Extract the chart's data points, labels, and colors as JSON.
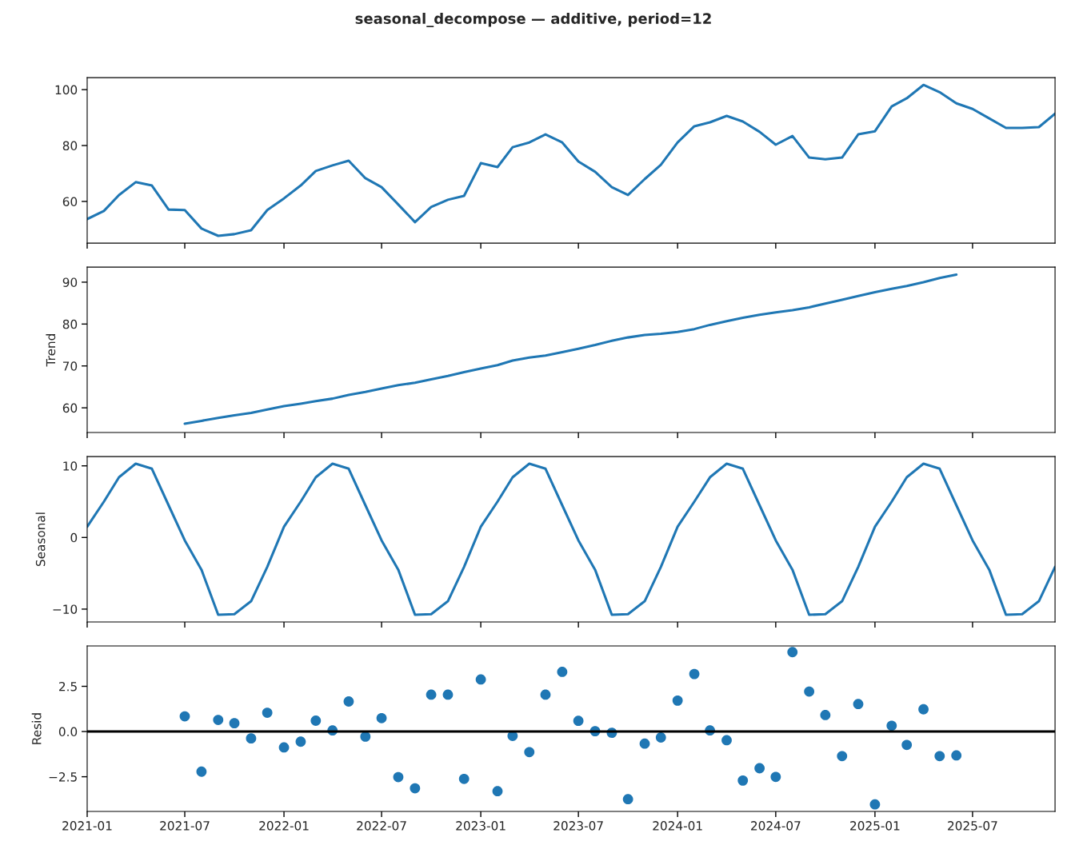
{
  "chart_data": [
    {
      "type": "line",
      "title": "seasonal_decompose — additive, period=12",
      "tick_labels": "y",
      "grid": false,
      "x": [
        "2021-01",
        "2021-02",
        "2021-03",
        "2021-04",
        "2021-05",
        "2021-06",
        "2021-07",
        "2021-08",
        "2021-09",
        "2021-10",
        "2021-11",
        "2021-12",
        "2022-01",
        "2022-02",
        "2022-03",
        "2022-04",
        "2022-05",
        "2022-06",
        "2022-07",
        "2022-08",
        "2022-09",
        "2022-10",
        "2022-11",
        "2022-12",
        "2023-01",
        "2023-02",
        "2023-03",
        "2023-04",
        "2023-05",
        "2023-06",
        "2023-07",
        "2023-08",
        "2023-09",
        "2023-10",
        "2023-11",
        "2023-12",
        "2024-01",
        "2024-02",
        "2024-03",
        "2024-04",
        "2024-05",
        "2024-06",
        "2024-07",
        "2024-08",
        "2024-09",
        "2024-10",
        "2024-11",
        "2024-12",
        "2025-01",
        "2025-02",
        "2025-03",
        "2025-04",
        "2025-05",
        "2025-06",
        "2025-07",
        "2025-08",
        "2025-09",
        "2025-10",
        "2025-11",
        "2025-12"
      ],
      "series": [
        {
          "color": "#1f77b4",
          "values": [
            53.7,
            56.6,
            62.3,
            66.9,
            65.7,
            57.1,
            56.9,
            50.3,
            47.7,
            48.3,
            49.7,
            56.9,
            61.1,
            65.7,
            70.9,
            72.9,
            74.6,
            68.3,
            65.1,
            58.9,
            52.6,
            58.0,
            60.6,
            62.0,
            73.7,
            72.3,
            79.4,
            81.1,
            84.0,
            81.1,
            74.3,
            70.6,
            65.1,
            62.3,
            68.0,
            73.1,
            81.1,
            86.9,
            88.3,
            90.6,
            88.6,
            84.9,
            80.3,
            83.4,
            75.7,
            75.1,
            75.7,
            84.0,
            85.1,
            94.0,
            96.9,
            101.7,
            99.1,
            95.1,
            93.1,
            89.7,
            86.3,
            86.3,
            86.6,
            91.4
          ]
        }
      ],
      "xlim": [
        "2021-01",
        "2025-12"
      ],
      "xticks": [
        "2021-01",
        "2021-07",
        "2022-01",
        "2022-07",
        "2023-01",
        "2023-07",
        "2024-01",
        "2024-07",
        "2025-01",
        "2025-07"
      ],
      "ylim": [
        45.1,
        104.3
      ],
      "yticks": [
        60,
        80,
        100
      ]
    },
    {
      "type": "line",
      "ylabel": "Trend",
      "tick_labels": "y",
      "grid": false,
      "series": [
        {
          "color": "#1f77b4",
          "x": [
            "2021-07",
            "2021-08",
            "2021-09",
            "2021-10",
            "2021-11",
            "2021-12",
            "2022-01",
            "2022-02",
            "2022-03",
            "2022-04",
            "2022-05",
            "2022-06",
            "2022-07",
            "2022-08",
            "2022-09",
            "2022-10",
            "2022-11",
            "2022-12",
            "2023-01",
            "2023-02",
            "2023-03",
            "2023-04",
            "2023-05",
            "2023-06",
            "2023-07",
            "2023-08",
            "2023-09",
            "2023-10",
            "2023-11",
            "2023-12",
            "2024-01",
            "2024-02",
            "2024-03",
            "2024-04",
            "2024-05",
            "2024-06",
            "2024-07",
            "2024-08",
            "2024-09",
            "2024-10",
            "2024-11",
            "2024-12",
            "2025-01",
            "2025-02",
            "2025-03",
            "2025-04",
            "2025-05",
            "2025-06"
          ],
          "values": [
            56.2,
            56.9,
            57.6,
            58.2,
            58.8,
            59.6,
            60.4,
            61.0,
            61.6,
            62.2,
            63.1,
            63.8,
            64.6,
            65.4,
            66.0,
            66.8,
            67.6,
            68.5,
            69.4,
            70.2,
            71.3,
            72.0,
            72.5,
            73.3,
            74.1,
            75.0,
            76.0,
            76.8,
            77.4,
            77.7,
            78.1,
            78.8,
            79.8,
            80.7,
            81.5,
            82.2,
            82.8,
            83.3,
            84.0,
            84.9,
            85.8,
            86.7,
            87.6,
            88.4,
            89.1,
            90.0,
            91.0,
            91.8
          ]
        }
      ],
      "xlim": [
        "2021-01",
        "2025-12"
      ],
      "xticks": [
        "2021-01",
        "2021-07",
        "2022-01",
        "2022-07",
        "2023-01",
        "2023-07",
        "2024-01",
        "2024-07",
        "2025-01",
        "2025-07"
      ],
      "ylim": [
        54.1,
        93.6
      ],
      "yticks": [
        60,
        70,
        80,
        90
      ]
    },
    {
      "type": "line",
      "ylabel": "Seasonal",
      "tick_labels": "y",
      "grid": false,
      "x": [
        "2021-01",
        "2021-02",
        "2021-03",
        "2021-04",
        "2021-05",
        "2021-06",
        "2021-07",
        "2021-08",
        "2021-09",
        "2021-10",
        "2021-11",
        "2021-12",
        "2022-01",
        "2022-02",
        "2022-03",
        "2022-04",
        "2022-05",
        "2022-06",
        "2022-07",
        "2022-08",
        "2022-09",
        "2022-10",
        "2022-11",
        "2022-12",
        "2023-01",
        "2023-02",
        "2023-03",
        "2023-04",
        "2023-05",
        "2023-06",
        "2023-07",
        "2023-08",
        "2023-09",
        "2023-10",
        "2023-11",
        "2023-12",
        "2024-01",
        "2024-02",
        "2024-03",
        "2024-04",
        "2024-05",
        "2024-06",
        "2024-07",
        "2024-08",
        "2024-09",
        "2024-10",
        "2024-11",
        "2024-12",
        "2025-01",
        "2025-02",
        "2025-03",
        "2025-04",
        "2025-05",
        "2025-06",
        "2025-07",
        "2025-08",
        "2025-09",
        "2025-10",
        "2025-11",
        "2025-12"
      ],
      "series": [
        {
          "color": "#1f77b4",
          "values": [
            1.5,
            5.0,
            8.4,
            10.3,
            9.6,
            4.5,
            -0.4,
            -4.5,
            -10.8,
            -10.7,
            -8.9,
            -4.1,
            1.5,
            5.0,
            8.4,
            10.3,
            9.6,
            4.5,
            -0.4,
            -4.5,
            -10.8,
            -10.7,
            -8.9,
            -4.1,
            1.5,
            5.0,
            8.4,
            10.3,
            9.6,
            4.5,
            -0.4,
            -4.5,
            -10.8,
            -10.7,
            -8.9,
            -4.1,
            1.5,
            5.0,
            8.4,
            10.3,
            9.6,
            4.5,
            -0.4,
            -4.5,
            -10.8,
            -10.7,
            -8.9,
            -4.1,
            1.5,
            5.0,
            8.4,
            10.3,
            9.6,
            4.5,
            -0.4,
            -4.5,
            -10.8,
            -10.7,
            -8.9,
            -4.1
          ]
        }
      ],
      "xlim": [
        "2021-01",
        "2025-12"
      ],
      "xticks": [
        "2021-01",
        "2021-07",
        "2022-01",
        "2022-07",
        "2023-01",
        "2023-07",
        "2024-01",
        "2024-07",
        "2025-01",
        "2025-07"
      ],
      "ylim": [
        -11.8,
        11.3
      ],
      "yticks": [
        {
          "value": -10,
          "label": "−10"
        },
        0,
        10
      ]
    },
    {
      "type": "scatter",
      "ylabel": "Resid",
      "grid": false,
      "marker": "circle",
      "series": [
        {
          "color": "#1f77b4",
          "x": [
            "2021-07",
            "2021-08",
            "2021-09",
            "2021-10",
            "2021-11",
            "2021-12",
            "2022-01",
            "2022-02",
            "2022-03",
            "2022-04",
            "2022-05",
            "2022-06",
            "2022-07",
            "2022-08",
            "2022-09",
            "2022-10",
            "2022-11",
            "2022-12",
            "2023-01",
            "2023-02",
            "2023-03",
            "2023-04",
            "2023-05",
            "2023-06",
            "2023-07",
            "2023-08",
            "2023-09",
            "2023-10",
            "2023-11",
            "2023-12",
            "2024-01",
            "2024-02",
            "2024-03",
            "2024-04",
            "2024-05",
            "2024-06",
            "2024-07",
            "2024-08",
            "2024-09",
            "2024-10",
            "2024-11",
            "2024-12",
            "2025-01",
            "2025-02",
            "2025-03",
            "2025-04",
            "2025-05",
            "2025-06"
          ],
          "values": [
            0.84,
            -2.22,
            0.64,
            0.46,
            -0.38,
            1.04,
            -0.88,
            -0.56,
            0.6,
            0.06,
            1.66,
            -0.28,
            0.74,
            -2.52,
            -3.14,
            2.04,
            2.04,
            -2.62,
            2.88,
            -3.3,
            -0.24,
            -1.14,
            2.04,
            3.3,
            0.59,
            0.02,
            -0.07,
            -3.74,
            -0.67,
            -0.33,
            1.71,
            3.18,
            0.06,
            -0.48,
            -2.71,
            -2.03,
            -2.51,
            4.39,
            2.21,
            0.91,
            -1.36,
            1.52,
            -4.03,
            0.32,
            -0.74,
            1.23,
            -1.36,
            -1.32
          ]
        }
      ],
      "ref_lines": [
        {
          "axis": "y",
          "value": 0,
          "color": "#000000"
        }
      ],
      "xlim": [
        "2021-01",
        "2025-12"
      ],
      "xticks": [
        "2021-01",
        "2021-07",
        "2022-01",
        "2022-07",
        "2023-01",
        "2023-07",
        "2024-01",
        "2024-07",
        "2025-01",
        "2025-07"
      ],
      "ylim": [
        -4.42,
        4.73
      ],
      "yticks": [
        {
          "value": -2.5,
          "label": "−2.5"
        },
        {
          "value": 0,
          "label": "0.0"
        },
        {
          "value": 2.5,
          "label": "2.5"
        }
      ]
    }
  ]
}
